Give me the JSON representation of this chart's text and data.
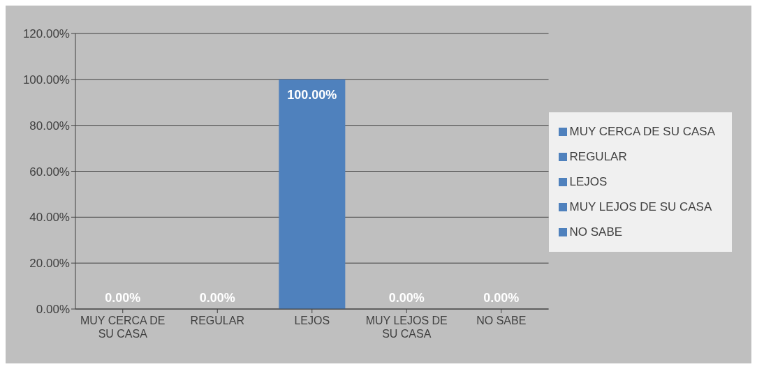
{
  "chart_data": {
    "type": "bar",
    "categories": [
      "MUY CERCA DE SU CASA",
      "REGULAR",
      "LEJOS",
      "MUY LEJOS DE SU CASA",
      "NO SABE"
    ],
    "stacked": true,
    "series": [
      {
        "name": "MUY CERCA DE SU CASA",
        "color": "#4f81bd",
        "values": [
          0,
          null,
          null,
          null,
          null
        ],
        "value_labels": [
          "0.00%",
          null,
          null,
          null,
          null
        ]
      },
      {
        "name": "REGULAR",
        "color": "#4f81bd",
        "values": [
          null,
          0,
          null,
          null,
          null
        ],
        "value_labels": [
          null,
          "0.00%",
          null,
          null,
          null
        ]
      },
      {
        "name": "LEJOS",
        "color": "#4f81bd",
        "values": [
          null,
          null,
          100,
          null,
          null
        ],
        "value_labels": [
          null,
          null,
          "100.00%",
          null,
          null
        ]
      },
      {
        "name": "MUY LEJOS DE SU CASA",
        "color": "#4f81bd",
        "values": [
          null,
          null,
          null,
          0,
          null
        ],
        "value_labels": [
          null,
          null,
          null,
          "0.00%",
          null
        ]
      },
      {
        "name": "NO SABE",
        "color": "#4f81bd",
        "values": [
          null,
          null,
          null,
          null,
          0
        ],
        "value_labels": [
          null,
          null,
          null,
          null,
          "0.00%"
        ]
      }
    ],
    "ylim": [
      0,
      120
    ],
    "yticks": [
      {
        "value": 0,
        "label": "0.00%"
      },
      {
        "value": 20,
        "label": "20.00%"
      },
      {
        "value": 40,
        "label": "40.00%"
      },
      {
        "value": 60,
        "label": "60.00%"
      },
      {
        "value": 80,
        "label": "80.00%"
      },
      {
        "value": 100,
        "label": "100.00%"
      },
      {
        "value": 120,
        "label": "120.00%"
      }
    ],
    "grid": "y",
    "legend": "right"
  }
}
